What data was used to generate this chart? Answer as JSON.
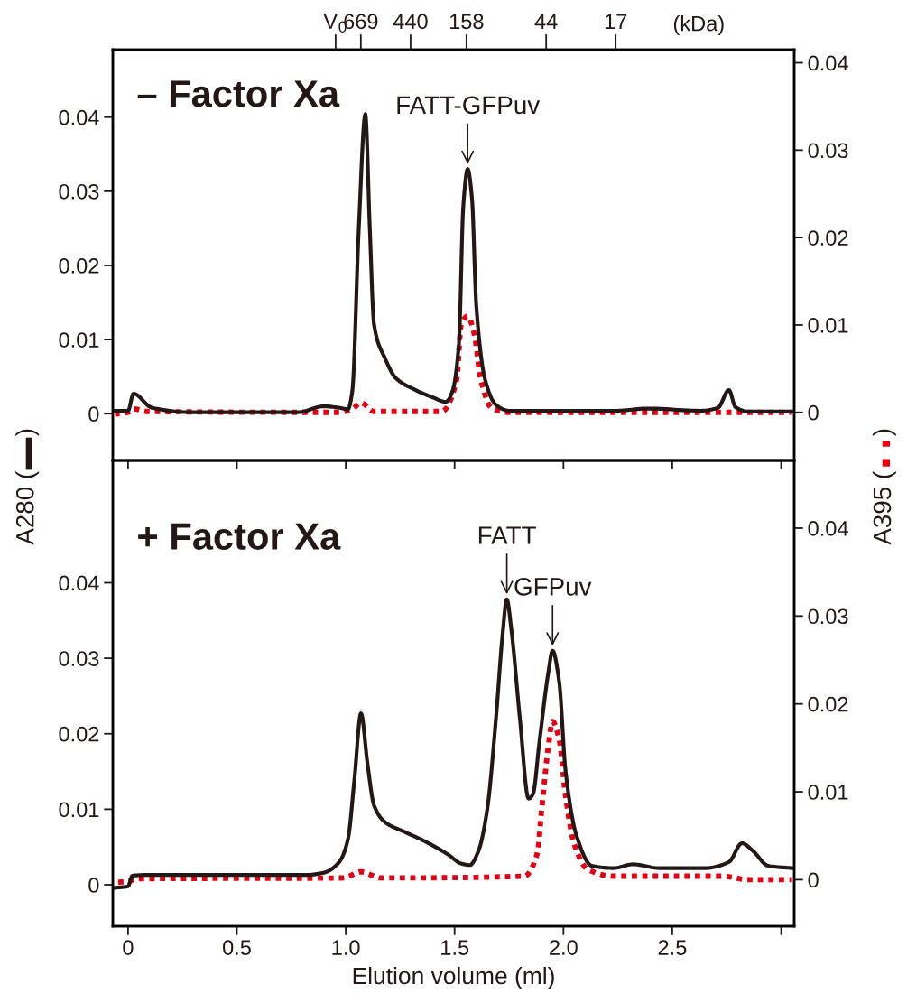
{
  "chart_data": [
    {
      "type": "line",
      "ylabel": "A280 (     )",
      "y2label": "A395 (     )",
      "tick_labels": "y",
      "grid": false,
      "legend": false,
      "annotations": [
        "– Factor Xa",
        "(kDa)",
        {
          "text": "FATT-GFPuv",
          "x": 1.56,
          "y": 0.033
        },
        "V$_{0}$",
        "669",
        "440",
        "158",
        "44",
        "17"
      ],
      "xlim": [
        -0.07,
        3.06
      ],
      "xticks": [
        0,
        0.5,
        1.0,
        1.5,
        2.0,
        2.5,
        3.0
      ],
      "ylim": [
        -0.0063,
        0.0491
      ],
      "yticks": [
        0,
        0.01,
        0.02,
        0.03,
        0.04
      ],
      "y2lim": [
        -0.0055,
        0.0415
      ],
      "y2ticks": [
        0,
        0.01,
        0.02,
        0.03,
        0.04
      ],
      "series": [
        {
          "color": "#231815",
          "line_style": "solid",
          "x": [
            -0.06,
            0.0,
            0.025,
            0.11,
            0.29,
            0.78,
            0.9,
            0.97,
            1.01,
            1.03,
            1.06,
            1.09,
            1.11,
            1.13,
            1.18,
            1.23,
            1.32,
            1.4,
            1.46,
            1.49,
            1.52,
            1.54,
            1.56,
            1.58,
            1.6,
            1.64,
            1.69,
            1.75,
            2.24,
            2.39,
            2.63,
            2.71,
            2.76,
            2.79,
            2.85,
            3.05
          ],
          "values": [
            0.0004,
            0.0004,
            0.0027,
            0.0008,
            0.0002,
            0.0002,
            0.001,
            0.0008,
            0.0006,
            0.003,
            0.025,
            0.0404,
            0.0254,
            0.012,
            0.0075,
            0.0048,
            0.0032,
            0.0022,
            0.0016,
            0.003,
            0.0095,
            0.028,
            0.033,
            0.029,
            0.0144,
            0.0046,
            0.0012,
            0.0004,
            0.0004,
            0.0007,
            0.0004,
            0.0008,
            0.0032,
            0.0009,
            0.0003,
            0.0003
          ]
        },
        {
          "color": "#e60012",
          "line_style": "dotted",
          "axis": "y2",
          "x": [
            -0.06,
            0.0,
            0.025,
            0.09,
            0.97,
            1.03,
            1.07,
            1.13,
            1.44,
            1.51,
            1.53,
            1.56,
            1.59,
            1.62,
            1.67,
            1.75,
            3.05
          ],
          "values": [
            -0.0002,
            0,
            0.0004,
            0.0001,
            0,
            0.0004,
            0.0011,
            0.0001,
            0.0001,
            0.0038,
            0.01,
            0.011,
            0.009,
            0.0038,
            0.0005,
            0,
            0
          ]
        }
      ]
    },
    {
      "type": "line",
      "xlabel": "Elution volume (ml)",
      "grid": false,
      "legend": false,
      "annotations": [
        "+ Factor Xa",
        {
          "text": "FATT",
          "x": 1.74,
          "y": 0.0378
        },
        {
          "text": "GFPuv",
          "x": 1.95,
          "y": 0.031
        }
      ],
      "xlim": [
        -0.07,
        3.06
      ],
      "xticks": [
        0,
        0.5,
        {
          "value": 1.0,
          "label": "1.0"
        },
        1.5,
        {
          "value": 2.0,
          "label": "2.0"
        },
        2.5,
        {
          "value": 3.0,
          "label": null
        }
      ],
      "ylim": [
        -0.0055,
        0.0562
      ],
      "yticks": [
        0,
        0.01,
        0.02,
        0.03,
        0.04
      ],
      "y2lim": [
        -0.0053,
        0.0477
      ],
      "y2ticks": [
        0,
        0.01,
        0.02,
        0.03,
        0.04
      ],
      "series": [
        {
          "color": "#231815",
          "line_style": "solid",
          "x": [
            -0.06,
            0.0,
            0.02,
            0.09,
            0.82,
            0.9,
            0.97,
            1.01,
            1.04,
            1.07,
            1.1,
            1.13,
            1.18,
            1.27,
            1.36,
            1.47,
            1.53,
            1.57,
            1.61,
            1.65,
            1.69,
            1.72,
            1.74,
            1.76,
            1.8,
            1.84,
            1.86,
            1.89,
            1.93,
            1.95,
            1.98,
            2.01,
            2.06,
            2.13,
            2.23,
            2.32,
            2.44,
            2.65,
            2.76,
            2.82,
            2.87,
            2.94,
            3.05
          ],
          "values": [
            -0.0004,
            -0.0002,
            0.0012,
            0.0013,
            0.0013,
            0.0016,
            0.003,
            0.006,
            0.014,
            0.0227,
            0.016,
            0.0105,
            0.0083,
            0.007,
            0.0058,
            0.004,
            0.0028,
            0.0026,
            0.0045,
            0.01,
            0.022,
            0.033,
            0.0378,
            0.034,
            0.022,
            0.0114,
            0.012,
            0.019,
            0.028,
            0.031,
            0.027,
            0.015,
            0.0065,
            0.0025,
            0.0022,
            0.0027,
            0.0022,
            0.0022,
            0.003,
            0.0055,
            0.0045,
            0.0025,
            0.0022
          ]
        },
        {
          "color": "#e60012",
          "line_style": "dotted",
          "axis": "y2",
          "x": [
            -0.06,
            0.0,
            0.04,
            0.99,
            1.07,
            1.16,
            1.82,
            1.88,
            1.9,
            1.93,
            1.95,
            1.98,
            2.01,
            2.05,
            2.11,
            2.23,
            2.73,
            2.85,
            3.05
          ],
          "values": [
            -0.0003,
            -0.0002,
            0.0001,
            0.0002,
            0.0009,
            0.0002,
            0.0004,
            0.003,
            0.008,
            0.015,
            0.018,
            0.016,
            0.0095,
            0.004,
            0.0012,
            0.0004,
            0.0004,
            0,
            0
          ]
        }
      ]
    }
  ]
}
